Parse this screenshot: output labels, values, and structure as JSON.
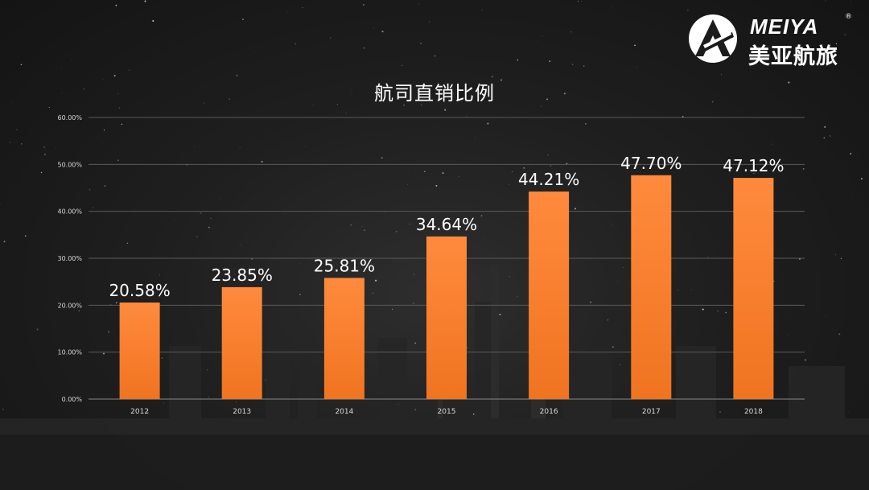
{
  "logo": {
    "en": "MEIYA",
    "registered": "®",
    "cn": "美亚航旅"
  },
  "colors": {
    "bar_top": "#ff8a3d",
    "bar_bottom": "#f07420",
    "grid": "#5a5a5a",
    "background": "#1b1b1b"
  },
  "chart_data": {
    "type": "bar",
    "title": "航司直销比例",
    "xlabel": "",
    "ylabel": "",
    "categories": [
      "2012",
      "2013",
      "2014",
      "2015",
      "2016",
      "2017",
      "2018"
    ],
    "values": [
      20.58,
      23.85,
      25.81,
      34.64,
      44.21,
      47.7,
      47.12
    ],
    "data_labels": [
      "20.58%",
      "23.85%",
      "25.81%",
      "34.64%",
      "44.21%",
      "47.70%",
      "47.12%"
    ],
    "y_ticks": [
      0,
      10,
      20,
      30,
      40,
      50,
      60
    ],
    "y_tick_labels": [
      "0.00%",
      "10.00%",
      "20.00%",
      "30.00%",
      "40.00%",
      "50.00%",
      "60.00%"
    ],
    "ylim": [
      0,
      60
    ],
    "grid": true,
    "legend": "none"
  }
}
